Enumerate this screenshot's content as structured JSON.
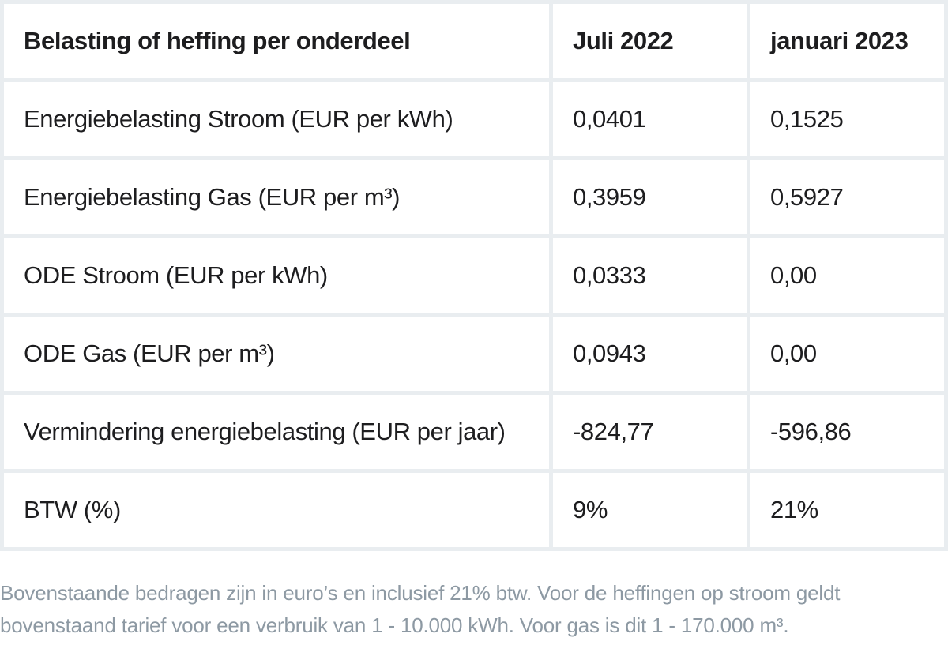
{
  "colors": {
    "cell_background": "#ffffff",
    "grid_line": "#e9edf0",
    "text": "#1d1d1f",
    "footnote_text": "#8d99a3"
  },
  "table": {
    "columns": {
      "label": "Belasting of heffing per onderdeel",
      "col1": "Juli 2022",
      "col2": "januari 2023"
    },
    "rows": [
      {
        "label": "Energiebelasting Stroom (EUR per kWh)",
        "juli2022": "0,0401",
        "jan2023": "0,1525"
      },
      {
        "label": "Energiebelasting Gas (EUR per m³)",
        "juli2022": "0,3959",
        "jan2023": "0,5927"
      },
      {
        "label": "ODE Stroom (EUR per kWh)",
        "juli2022": "0,0333",
        "jan2023": "0,00"
      },
      {
        "label": "ODE Gas (EUR per m³)",
        "juli2022": "0,0943",
        "jan2023": "0,00"
      },
      {
        "label": "Vermindering energiebelasting (EUR per jaar)",
        "juli2022": "-824,77",
        "jan2023": "-596,86"
      },
      {
        "label": "BTW (%)",
        "juli2022": "9%",
        "jan2023": "21%"
      }
    ]
  },
  "footnote": {
    "line1": "Bovenstaande bedragen zijn in euro’s en inclusief 21% btw. Voor de heffingen op stroom geldt",
    "line2": "bovenstaand tarief voor een verbruik van 1 - 10.000 kWh. Voor gas is dit 1 - 170.000 m³."
  },
  "chart_data": {
    "type": "table",
    "title": "Belasting of heffing per onderdeel",
    "columns": [
      "Belasting of heffing per onderdeel",
      "Juli 2022",
      "januari 2023"
    ],
    "rows": [
      [
        "Energiebelasting Stroom (EUR per kWh)",
        "0,0401",
        "0,1525"
      ],
      [
        "Energiebelasting Gas (EUR per m³)",
        "0,3959",
        "0,5927"
      ],
      [
        "ODE Stroom (EUR per kWh)",
        "0,0333",
        "0,00"
      ],
      [
        "ODE Gas (EUR per m³)",
        "0,0943",
        "0,00"
      ],
      [
        "Vermindering energiebelasting (EUR per jaar)",
        "-824,77",
        "-596,86"
      ],
      [
        "BTW (%)",
        "9%",
        "21%"
      ]
    ],
    "footnote": "Bovenstaande bedragen zijn in euro’s en inclusief 21% btw. Voor de heffingen op stroom geldt bovenstaand tarief voor een verbruik van 1 - 10.000 kWh. Voor gas is dit 1 - 170.000 m³."
  }
}
